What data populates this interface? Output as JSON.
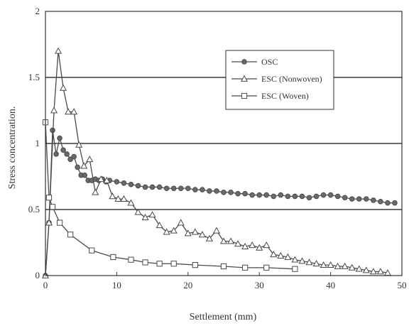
{
  "chart_data": {
    "type": "line",
    "title": "",
    "xlabel": "Settlement (mm)",
    "ylabel": "Stress concentration.",
    "xlim": [
      0,
      50
    ],
    "ylim": [
      0,
      2
    ],
    "x_ticks": [
      "0",
      "10",
      "20",
      "30",
      "40",
      "50"
    ],
    "y_ticks": [
      "0",
      "0.5",
      "1",
      "1.5",
      "2"
    ],
    "grid": "horizontal",
    "legend_position": "top-right",
    "series": [
      {
        "name": "OSC",
        "marker": "circle",
        "x": [
          0,
          0.5,
          1,
          1.5,
          2,
          2.5,
          3,
          3.5,
          4,
          4.5,
          5,
          5.5,
          6,
          6.5,
          7,
          7.5,
          8,
          8.5,
          9,
          10,
          11,
          12,
          13,
          14,
          15,
          16,
          17,
          18,
          19,
          20,
          21,
          22,
          23,
          24,
          25,
          26,
          27,
          28,
          29,
          30,
          31,
          32,
          33,
          34,
          35,
          36,
          37,
          38,
          39,
          40,
          41,
          42,
          43,
          44,
          45,
          46,
          47,
          48,
          49
        ],
        "y": [
          0,
          0.4,
          1.1,
          0.92,
          1.04,
          0.95,
          0.92,
          0.88,
          0.9,
          0.82,
          0.76,
          0.76,
          0.72,
          0.72,
          0.73,
          0.72,
          0.73,
          0.71,
          0.72,
          0.71,
          0.7,
          0.69,
          0.68,
          0.67,
          0.67,
          0.67,
          0.66,
          0.66,
          0.66,
          0.66,
          0.65,
          0.65,
          0.64,
          0.64,
          0.63,
          0.63,
          0.62,
          0.62,
          0.61,
          0.61,
          0.61,
          0.6,
          0.61,
          0.6,
          0.6,
          0.6,
          0.59,
          0.6,
          0.61,
          0.61,
          0.6,
          0.59,
          0.58,
          0.58,
          0.58,
          0.57,
          0.56,
          0.55,
          0.55
        ]
      },
      {
        "name": "ESC (Nonwoven)",
        "marker": "triangle",
        "x": [
          0,
          0.5,
          1.2,
          1.8,
          2.5,
          3.2,
          4,
          4.7,
          5.4,
          6.2,
          7,
          7.8,
          8.6,
          9.4,
          10.2,
          11,
          12,
          13,
          14,
          15,
          16,
          17,
          18,
          19,
          20,
          21,
          22,
          23,
          24,
          25,
          26,
          27,
          28,
          29,
          30,
          31,
          32,
          33,
          34,
          35,
          36,
          37,
          38,
          39,
          40,
          41,
          42,
          43,
          44,
          45,
          46,
          47,
          48
        ],
        "y": [
          0,
          0.4,
          1.25,
          1.7,
          1.42,
          1.24,
          1.24,
          0.99,
          0.83,
          0.88,
          0.63,
          0.73,
          0.72,
          0.6,
          0.58,
          0.58,
          0.55,
          0.48,
          0.44,
          0.46,
          0.38,
          0.33,
          0.34,
          0.4,
          0.32,
          0.33,
          0.31,
          0.28,
          0.34,
          0.26,
          0.26,
          0.24,
          0.22,
          0.23,
          0.21,
          0.23,
          0.16,
          0.15,
          0.14,
          0.12,
          0.11,
          0.1,
          0.09,
          0.08,
          0.08,
          0.07,
          0.07,
          0.06,
          0.05,
          0.04,
          0.03,
          0.03,
          0.02
        ]
      },
      {
        "name": "ESC (Woven)",
        "marker": "square",
        "x": [
          0,
          0.5,
          1,
          2,
          3.5,
          6.5,
          9.5,
          12,
          14,
          16,
          18,
          21,
          25,
          28,
          31,
          35
        ],
        "y": [
          1.16,
          0.59,
          0.52,
          0.4,
          0.31,
          0.19,
          0.14,
          0.12,
          0.1,
          0.09,
          0.09,
          0.08,
          0.07,
          0.06,
          0.06,
          0.05
        ]
      }
    ]
  },
  "colors": {
    "line": "#4a4a4a",
    "grid": "#3a3a3a",
    "marker_fill_circle": "#6a6a6a",
    "marker_fill_open": "#ffffff"
  }
}
